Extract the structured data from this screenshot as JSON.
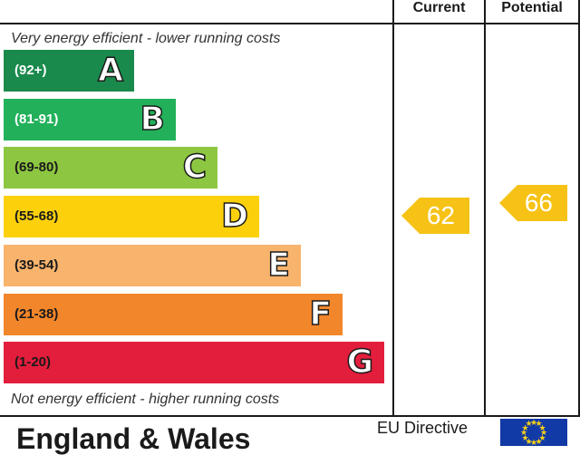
{
  "header": {
    "current_label": "Current",
    "potential_label": "Potential"
  },
  "notes": {
    "top": "Very energy efficient - lower running costs",
    "bottom": "Not energy efficient - higher running costs"
  },
  "bands": [
    {
      "letter": "A",
      "range": "(92+)",
      "color": "#198a4c",
      "range_color": "#ffffff"
    },
    {
      "letter": "B",
      "range": "(81-91)",
      "color": "#22b15a",
      "range_color": "#ffffff"
    },
    {
      "letter": "C",
      "range": "(69-80)",
      "color": "#8dc641",
      "range_color": "#1a1a1a"
    },
    {
      "letter": "D",
      "range": "(55-68)",
      "color": "#fcd00b",
      "range_color": "#1a1a1a"
    },
    {
      "letter": "E",
      "range": "(39-54)",
      "color": "#f8b36c",
      "range_color": "#1a1a1a"
    },
    {
      "letter": "F",
      "range": "(21-38)",
      "color": "#f2862a",
      "range_color": "#1a1a1a"
    },
    {
      "letter": "G",
      "range": "(1-20)",
      "color": "#e31d3c",
      "range_color": "#1a1a1a"
    }
  ],
  "ratings": {
    "current": {
      "value": "62",
      "color": "#f6c215"
    },
    "potential": {
      "value": "66",
      "color": "#f6c215"
    }
  },
  "footer": {
    "region": "England & Wales",
    "eu": "EU Directive"
  }
}
